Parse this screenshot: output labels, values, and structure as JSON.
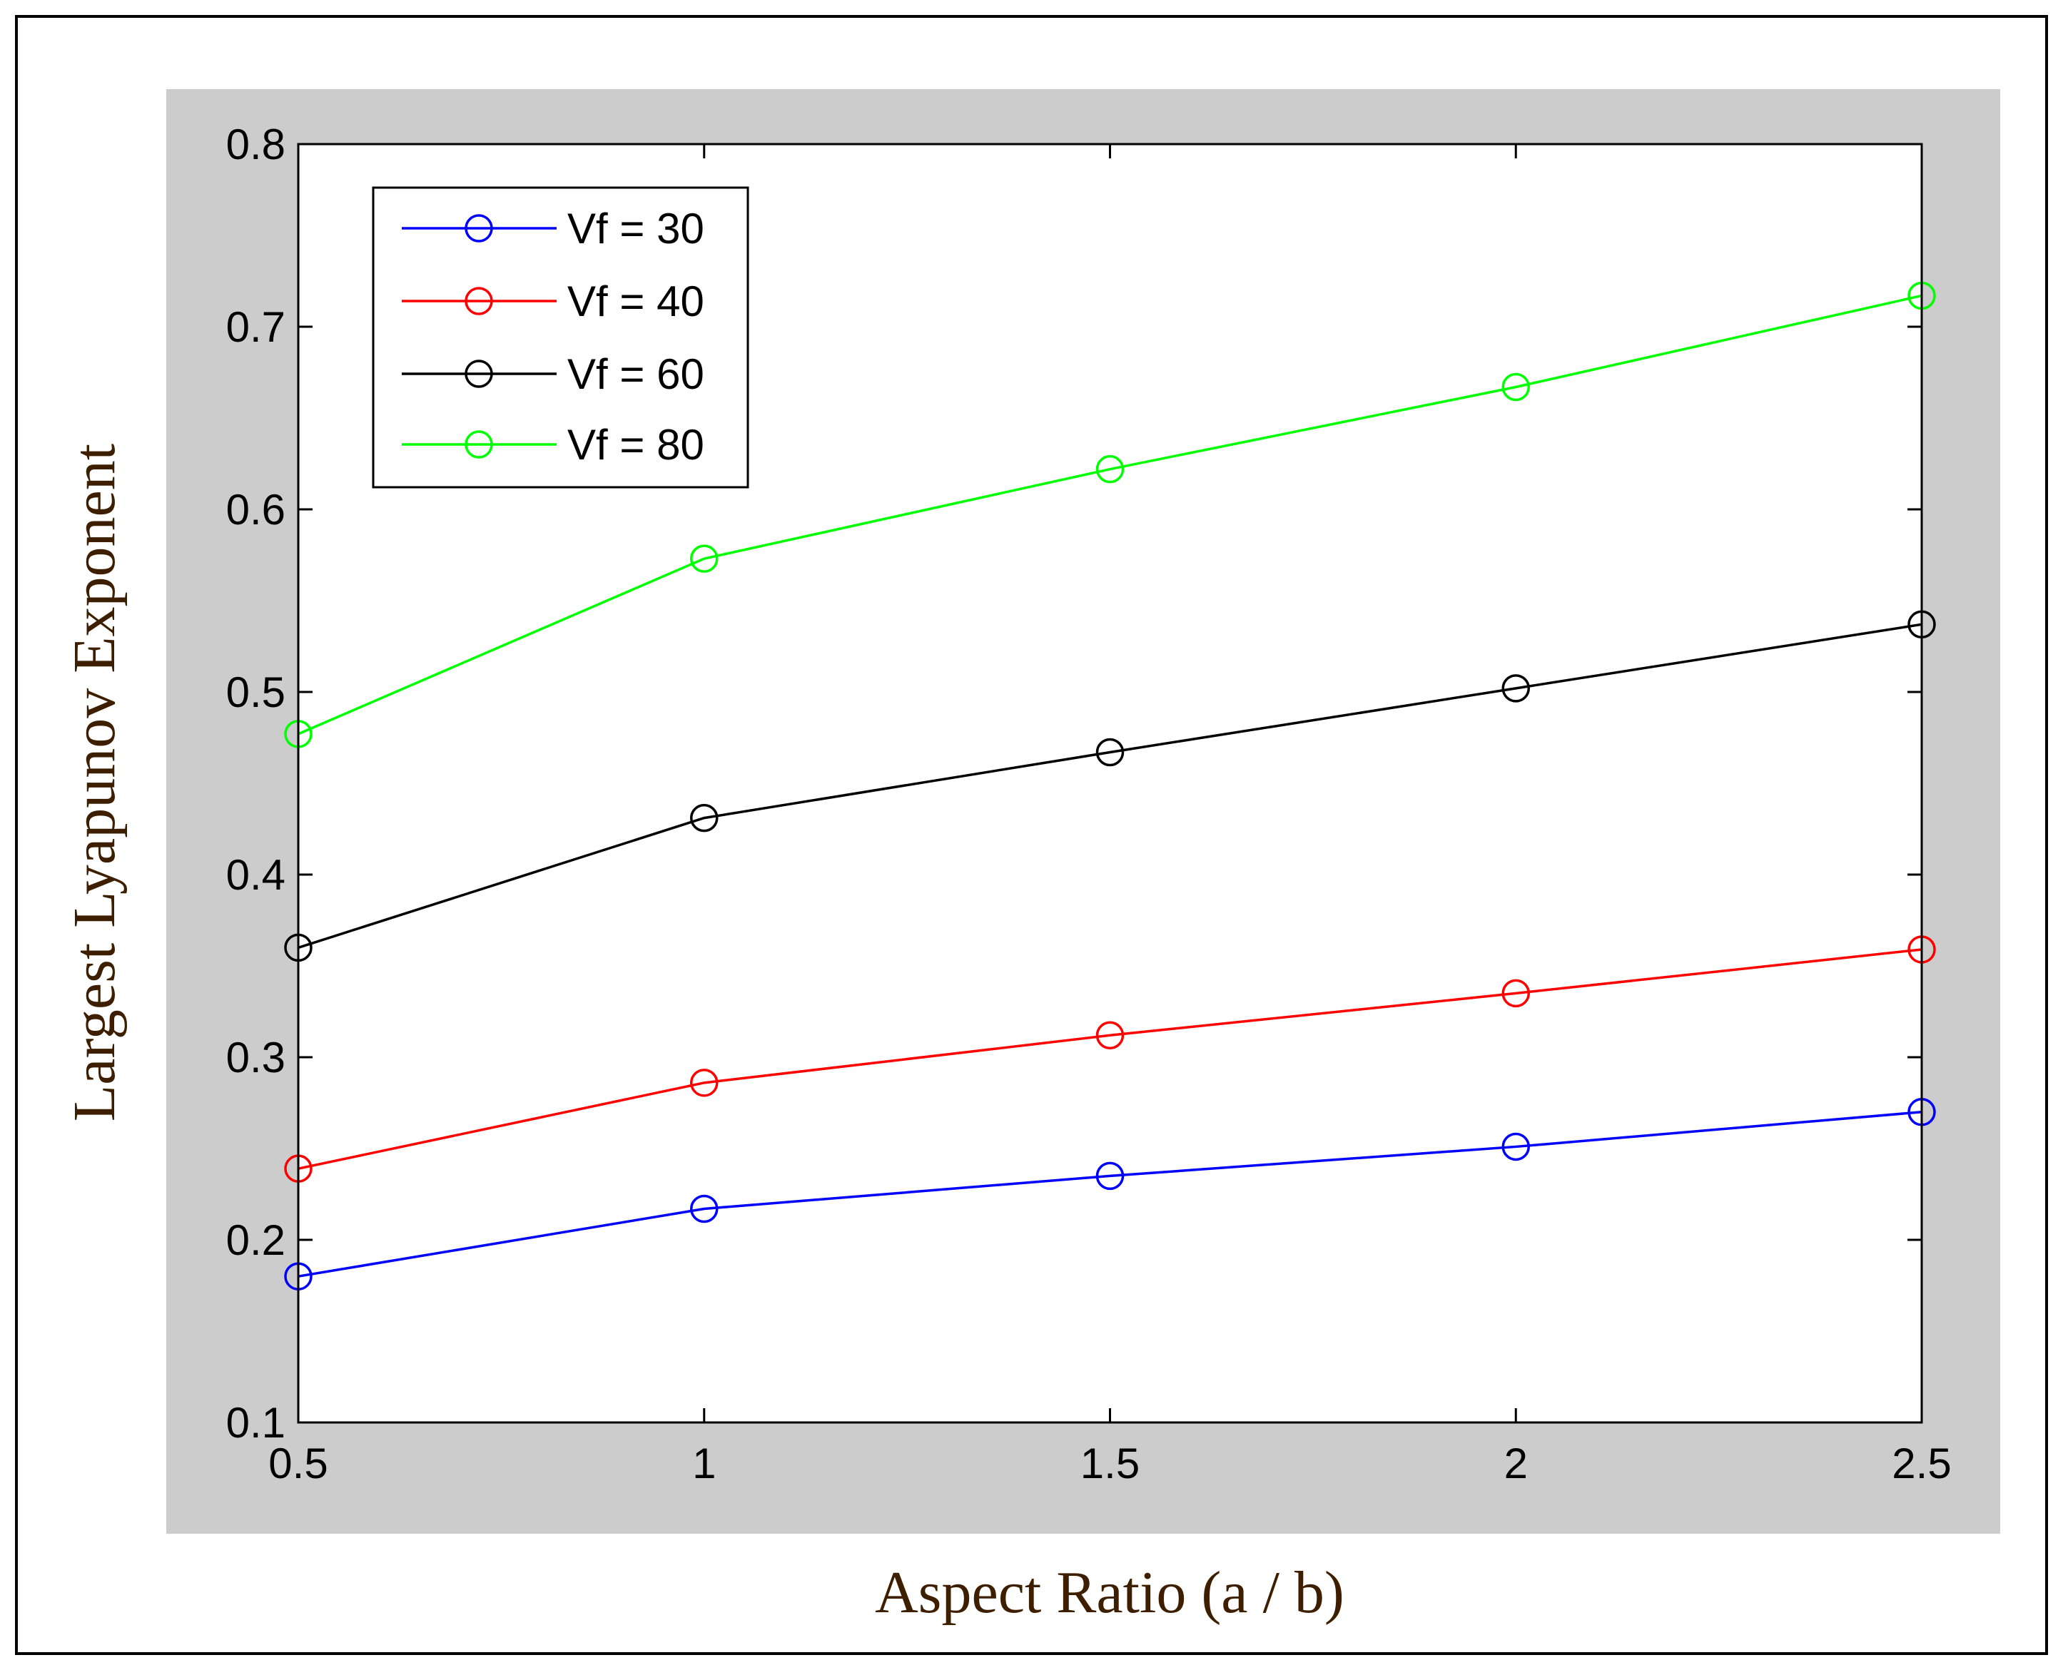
{
  "chart_data": {
    "type": "line",
    "title": "",
    "xlabel": "Aspect Ratio (a / b)",
    "ylabel": "Largest Lyapunov Exponent",
    "x": [
      0.5,
      1,
      1.5,
      2,
      2.5
    ],
    "xlim": [
      0.5,
      2.5
    ],
    "ylim": [
      0.1,
      0.8
    ],
    "xticks": [
      0.5,
      1,
      1.5,
      2,
      2.5
    ],
    "xtick_labels": [
      "0.5",
      "1",
      "1.5",
      "2",
      "2.5"
    ],
    "yticks": [
      0.1,
      0.2,
      0.3,
      0.4,
      0.5,
      0.6,
      0.7,
      0.8
    ],
    "ytick_labels": [
      "0.1",
      "0.2",
      "0.3",
      "0.4",
      "0.5",
      "0.6",
      "0.7",
      "0.8"
    ],
    "grid": false,
    "legend_position": "top-left",
    "marker": "circle",
    "series": [
      {
        "name": "Vf = 30",
        "color": "#0000ff",
        "values": [
          0.18,
          0.217,
          0.235,
          0.251,
          0.27
        ]
      },
      {
        "name": "Vf = 40",
        "color": "#ff0000",
        "values": [
          0.239,
          0.286,
          0.312,
          0.335,
          0.359
        ]
      },
      {
        "name": "Vf = 60",
        "color": "#000000",
        "values": [
          0.36,
          0.431,
          0.467,
          0.502,
          0.537
        ]
      },
      {
        "name": "Vf = 80",
        "color": "#00ff00",
        "values": [
          0.477,
          0.573,
          0.622,
          0.667,
          0.717
        ]
      }
    ],
    "axis_title_color": "#3d1f00",
    "panel_color": "#cccccc"
  }
}
